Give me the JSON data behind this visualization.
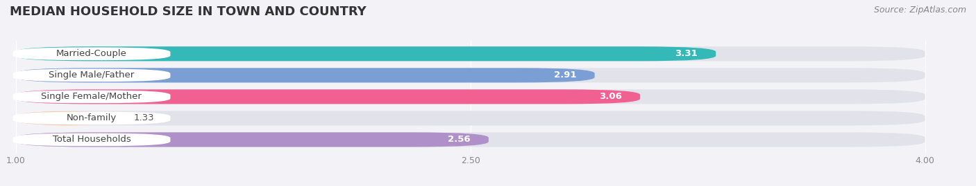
{
  "title": "MEDIAN HOUSEHOLD SIZE IN TOWN AND COUNTRY",
  "source": "Source: ZipAtlas.com",
  "categories": [
    "Married-Couple",
    "Single Male/Father",
    "Single Female/Mother",
    "Non-family",
    "Total Households"
  ],
  "values": [
    3.31,
    2.91,
    3.06,
    1.33,
    2.56
  ],
  "bar_colors": [
    "#35b8b8",
    "#7b9fd4",
    "#f06090",
    "#f5c4a0",
    "#b090c8"
  ],
  "background_color": "#f2f2f7",
  "bar_bg_color": "#e2e2ea",
  "xmin": 1.0,
  "xmax": 4.0,
  "xticks": [
    1.0,
    2.5,
    4.0
  ],
  "label_fontsize": 9.5,
  "value_fontsize": 9.5,
  "title_fontsize": 13,
  "source_fontsize": 9,
  "bar_height": 0.68,
  "rounding_size": 0.25
}
